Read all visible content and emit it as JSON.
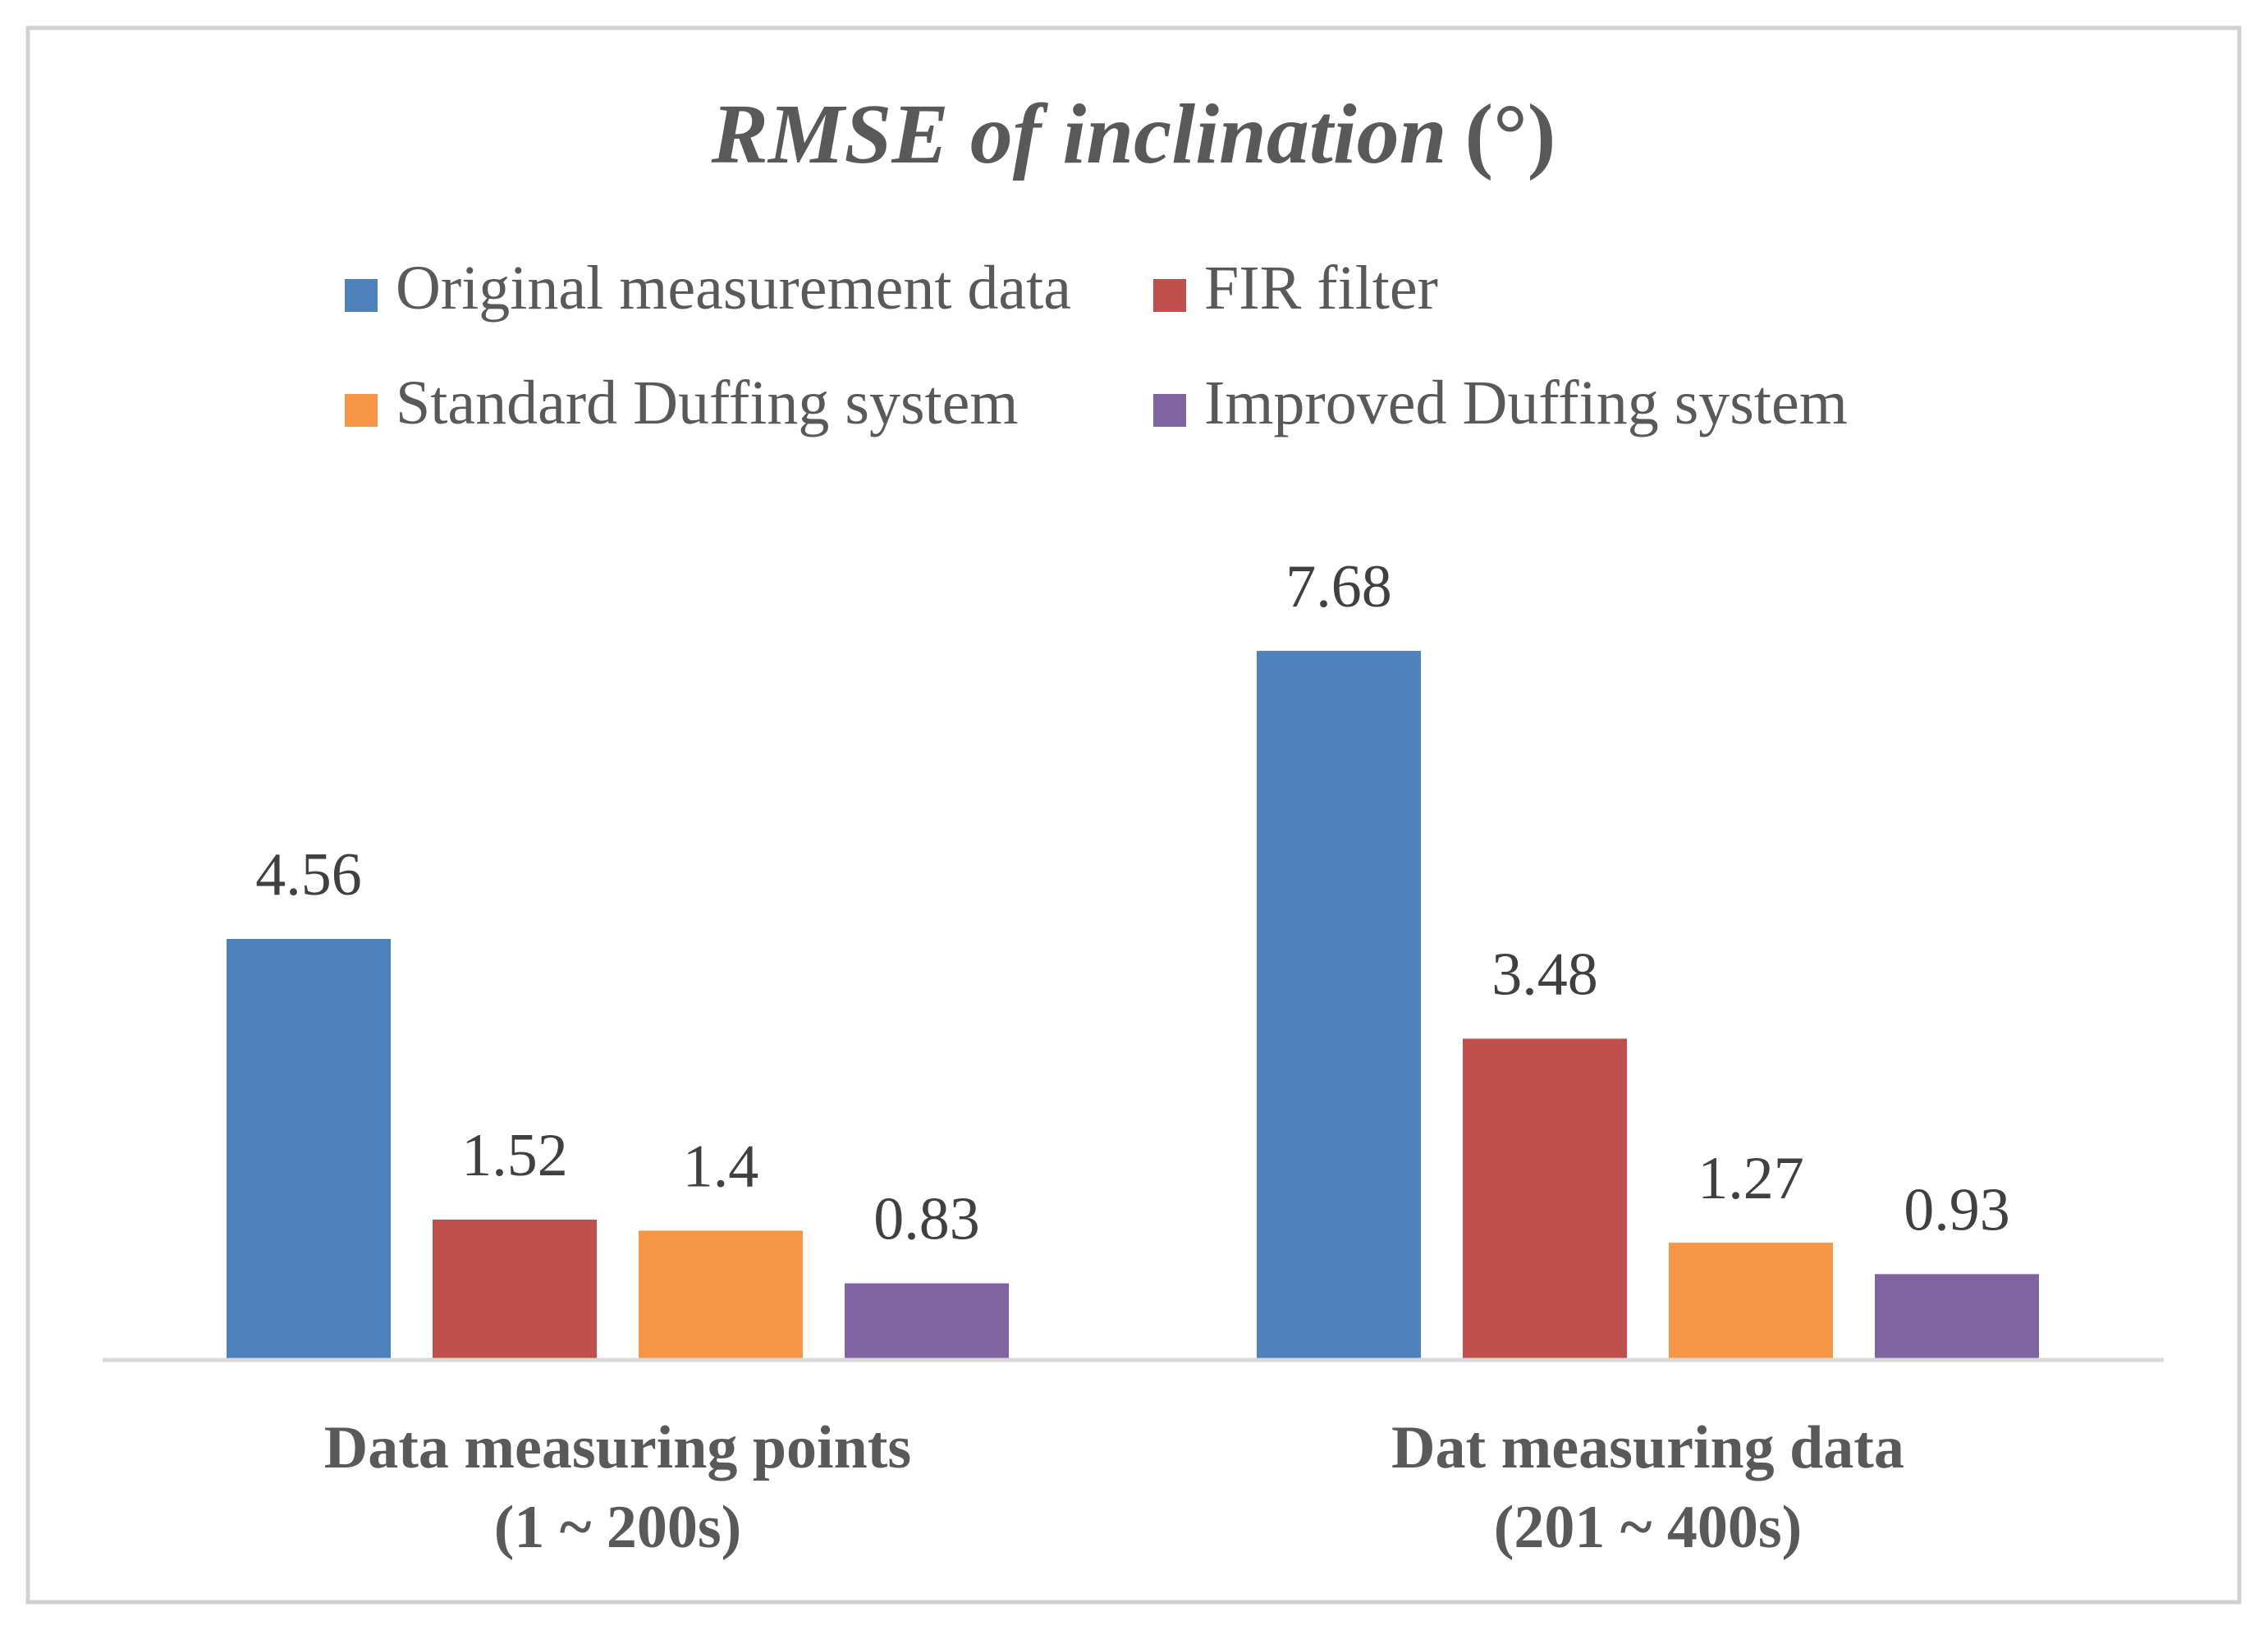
{
  "chart_data": {
    "type": "bar",
    "title": "RMSE of inclination",
    "title_unit": "(°)",
    "categories": [
      {
        "line1": "Data measuring points",
        "line2": "(1 ~ 200s)"
      },
      {
        "line1": "Dat measuring data",
        "line2": "(201 ~ 400s)"
      }
    ],
    "series": [
      {
        "name": "Original measurement data",
        "color": "#4f81bd",
        "values": [
          4.56,
          7.68
        ],
        "labels": [
          "4.56",
          "7.68"
        ]
      },
      {
        "name": "FIR filter",
        "color": "#c0504d",
        "values": [
          1.52,
          3.48
        ],
        "labels": [
          "1.52",
          "3.48"
        ]
      },
      {
        "name": "Standard Duffing system",
        "color": "#f79646",
        "values": [
          1.4,
          1.27
        ],
        "labels": [
          "1.4",
          "1.27"
        ]
      },
      {
        "name": "Improved Duffing system",
        "color": "#8064a2",
        "values": [
          0.83,
          0.93
        ],
        "labels": [
          "0.83",
          "0.93"
        ]
      }
    ],
    "ylim": [
      0,
      8.8
    ],
    "legend_position": "top",
    "grid": false
  }
}
